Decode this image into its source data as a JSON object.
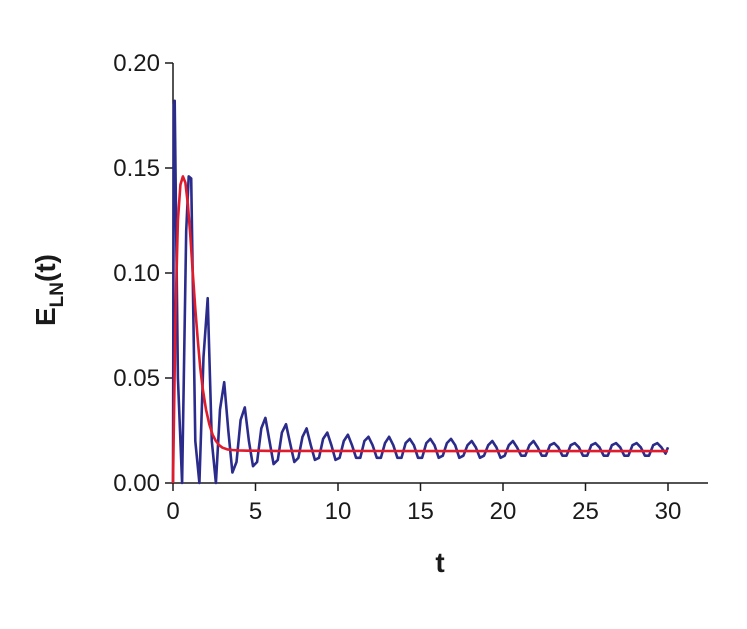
{
  "chart_data": {
    "type": "line",
    "title": "",
    "xlabel": "t",
    "ylabel_main": "E",
    "ylabel_sub": "LN",
    "ylabel_suffix": "(t)",
    "xlim": [
      0,
      32
    ],
    "ylim": [
      0,
      0.2
    ],
    "xticks": [
      0,
      5,
      10,
      15,
      20,
      25,
      30
    ],
    "xtick_labels": [
      "0",
      "5",
      "10",
      "15",
      "20",
      "25",
      "30"
    ],
    "yticks": [
      0,
      0.05,
      0.1,
      0.15,
      0.2
    ],
    "ytick_labels": [
      "0.00",
      "0.05",
      "0.10",
      "0.15",
      "0.20"
    ],
    "grid": false,
    "legend": "none",
    "series": [
      {
        "color": "#2b2b8c",
        "x": [
          0,
          0.05,
          0.1,
          0.3,
          0.55,
          0.8,
          0.95,
          1.1,
          1.35,
          1.6,
          1.85,
          2.1,
          2.35,
          2.6,
          2.85,
          3.1,
          3.35,
          3.6,
          3.85,
          4.1,
          4.35,
          4.6,
          4.85,
          5.1,
          5.35,
          5.6,
          5.85,
          6.1,
          6.35,
          6.6,
          6.85,
          7.1,
          7.35,
          7.6,
          7.85,
          8.1,
          8.35,
          8.6,
          8.85,
          9.1,
          9.35,
          9.6,
          9.85,
          10.1,
          10.35,
          10.6,
          10.85,
          11.1,
          11.35,
          11.6,
          11.85,
          12.1,
          12.35,
          12.6,
          12.85,
          13.1,
          13.35,
          13.6,
          13.85,
          14.1,
          14.35,
          14.6,
          14.85,
          15.1,
          15.35,
          15.6,
          15.85,
          16.1,
          16.35,
          16.6,
          16.85,
          17.1,
          17.35,
          17.6,
          17.85,
          18.1,
          18.35,
          18.6,
          18.85,
          19.1,
          19.35,
          19.6,
          19.85,
          20.1,
          20.35,
          20.6,
          20.85,
          21.1,
          21.35,
          21.6,
          21.85,
          22.1,
          22.35,
          22.6,
          22.85,
          23.1,
          23.35,
          23.6,
          23.85,
          24.1,
          24.35,
          24.6,
          24.85,
          25.1,
          25.35,
          25.6,
          25.85,
          26.1,
          26.35,
          26.6,
          26.85,
          27.1,
          27.35,
          27.6,
          27.85,
          28.1,
          28.35,
          28.6,
          28.85,
          29.1,
          29.35,
          29.6,
          29.85,
          30
        ],
        "y": [
          0,
          0.18,
          0.182,
          0.05,
          0.0,
          0.12,
          0.146,
          0.145,
          0.02,
          0.0,
          0.06,
          0.088,
          0.02,
          0.0,
          0.035,
          0.048,
          0.025,
          0.005,
          0.01,
          0.03,
          0.036,
          0.02,
          0.008,
          0.01,
          0.026,
          0.031,
          0.02,
          0.009,
          0.011,
          0.024,
          0.028,
          0.019,
          0.01,
          0.012,
          0.022,
          0.026,
          0.018,
          0.011,
          0.012,
          0.021,
          0.024,
          0.018,
          0.011,
          0.012,
          0.02,
          0.023,
          0.018,
          0.012,
          0.012,
          0.02,
          0.022,
          0.018,
          0.012,
          0.012,
          0.019,
          0.022,
          0.018,
          0.012,
          0.012,
          0.019,
          0.021,
          0.018,
          0.012,
          0.012,
          0.019,
          0.021,
          0.018,
          0.012,
          0.013,
          0.019,
          0.021,
          0.018,
          0.012,
          0.013,
          0.018,
          0.02,
          0.017,
          0.012,
          0.013,
          0.018,
          0.02,
          0.017,
          0.012,
          0.013,
          0.018,
          0.02,
          0.017,
          0.013,
          0.013,
          0.018,
          0.02,
          0.017,
          0.013,
          0.013,
          0.018,
          0.019,
          0.017,
          0.013,
          0.013,
          0.018,
          0.019,
          0.017,
          0.013,
          0.013,
          0.018,
          0.019,
          0.017,
          0.013,
          0.013,
          0.018,
          0.019,
          0.017,
          0.013,
          0.013,
          0.018,
          0.019,
          0.017,
          0.013,
          0.013,
          0.018,
          0.019,
          0.017,
          0.014,
          0.017
        ]
      },
      {
        "color": "#e01b2b",
        "x": [
          0,
          0.15,
          0.3,
          0.45,
          0.6,
          0.75,
          0.9,
          1.05,
          1.2,
          1.35,
          1.5,
          1.65,
          1.8,
          2.0,
          2.2,
          2.4,
          2.6,
          2.8,
          3.0,
          3.3,
          3.6,
          4.0,
          4.5,
          5,
          6,
          8,
          10,
          15,
          20,
          25,
          30
        ],
        "y": [
          0,
          0.08,
          0.125,
          0.142,
          0.146,
          0.143,
          0.133,
          0.118,
          0.1,
          0.083,
          0.068,
          0.055,
          0.045,
          0.035,
          0.028,
          0.023,
          0.02,
          0.018,
          0.0168,
          0.016,
          0.0157,
          0.0155,
          0.0154,
          0.0154,
          0.0153,
          0.0153,
          0.0153,
          0.0152,
          0.0152,
          0.0152,
          0.0152
        ]
      }
    ]
  }
}
